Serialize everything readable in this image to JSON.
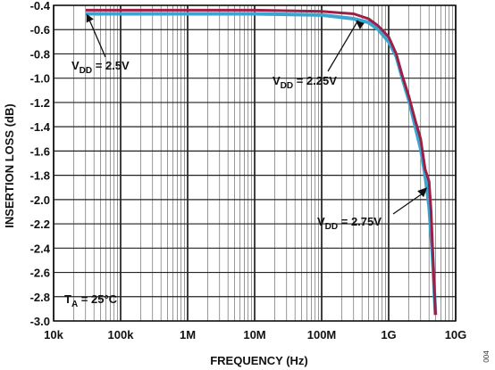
{
  "chart_data": {
    "type": "line",
    "title": "",
    "xlabel": "FREQUENCY (Hz)",
    "ylabel": "INSERTION LOSS (dB)",
    "x_scale": "log",
    "xlim": [
      10000,
      10000000000
    ],
    "ylim": [
      -3.0,
      -0.4
    ],
    "x_ticks": [
      {
        "value": 10000,
        "label": "10k"
      },
      {
        "value": 100000,
        "label": "100k"
      },
      {
        "value": 1000000,
        "label": "1M"
      },
      {
        "value": 10000000,
        "label": "10M"
      },
      {
        "value": 100000000,
        "label": "100M"
      },
      {
        "value": 1000000000,
        "label": "1G"
      },
      {
        "value": 10000000000,
        "label": "10G"
      }
    ],
    "y_ticks": [
      -0.4,
      -0.6,
      -0.8,
      -1.0,
      -1.2,
      -1.4,
      -1.6,
      -1.8,
      -2.0,
      -2.2,
      -2.4,
      -2.6,
      -2.8,
      -3.0
    ],
    "grid": true,
    "colors": {
      "cyan": "#3aa6d0",
      "maroon": "#9c1f45",
      "grid": "#222222"
    },
    "series": [
      {
        "color": "#3aa6d0",
        "x": [
          30000,
          100000,
          1000000,
          10000000,
          100000000,
          300000000,
          500000000,
          700000000,
          1000000000,
          1300000000,
          1600000000,
          2000000000,
          2500000000,
          3000000000,
          3500000000,
          4000000000,
          4500000000,
          5000000000
        ],
        "y": [
          -0.47,
          -0.47,
          -0.47,
          -0.47,
          -0.48,
          -0.51,
          -0.54,
          -0.6,
          -0.7,
          -0.82,
          -1.0,
          -1.18,
          -1.4,
          -1.58,
          -1.8,
          -2.05,
          -2.45,
          -2.95
        ]
      },
      {
        "color": "#9c1f45",
        "x": [
          30000,
          100000,
          1000000,
          10000000,
          100000000,
          300000000,
          500000000,
          700000000,
          1000000000,
          1300000000,
          1600000000,
          2000000000,
          2500000000,
          3000000000,
          3500000000,
          4000000000,
          4300000000,
          4600000000,
          5000000000
        ],
        "y": [
          -0.44,
          -0.44,
          -0.44,
          -0.44,
          -0.45,
          -0.47,
          -0.51,
          -0.57,
          -0.66,
          -0.8,
          -0.98,
          -1.15,
          -1.35,
          -1.5,
          -1.75,
          -1.85,
          -2.1,
          -2.5,
          -2.95
        ]
      }
    ],
    "annotations": [
      {
        "text": "V_DD = 2.5V",
        "base": "V",
        "sub": "DD",
        "rest": " = 2.5V",
        "x_target": 30000,
        "y_target": -0.44
      },
      {
        "text": "V_DD = 2.25V",
        "base": "V",
        "sub": "DD",
        "rest": " = 2.25V",
        "x_target": 350000000,
        "y_target": -0.48
      },
      {
        "text": "V_DD = 2.75V",
        "base": "V",
        "sub": "DD",
        "rest": " = 2.75V",
        "x_target": 4000000000,
        "y_target": -1.87
      },
      {
        "text": "T_A = 25°C",
        "base": "T",
        "sub": "A",
        "rest": " = 25°C"
      }
    ],
    "figure_label": "004"
  }
}
